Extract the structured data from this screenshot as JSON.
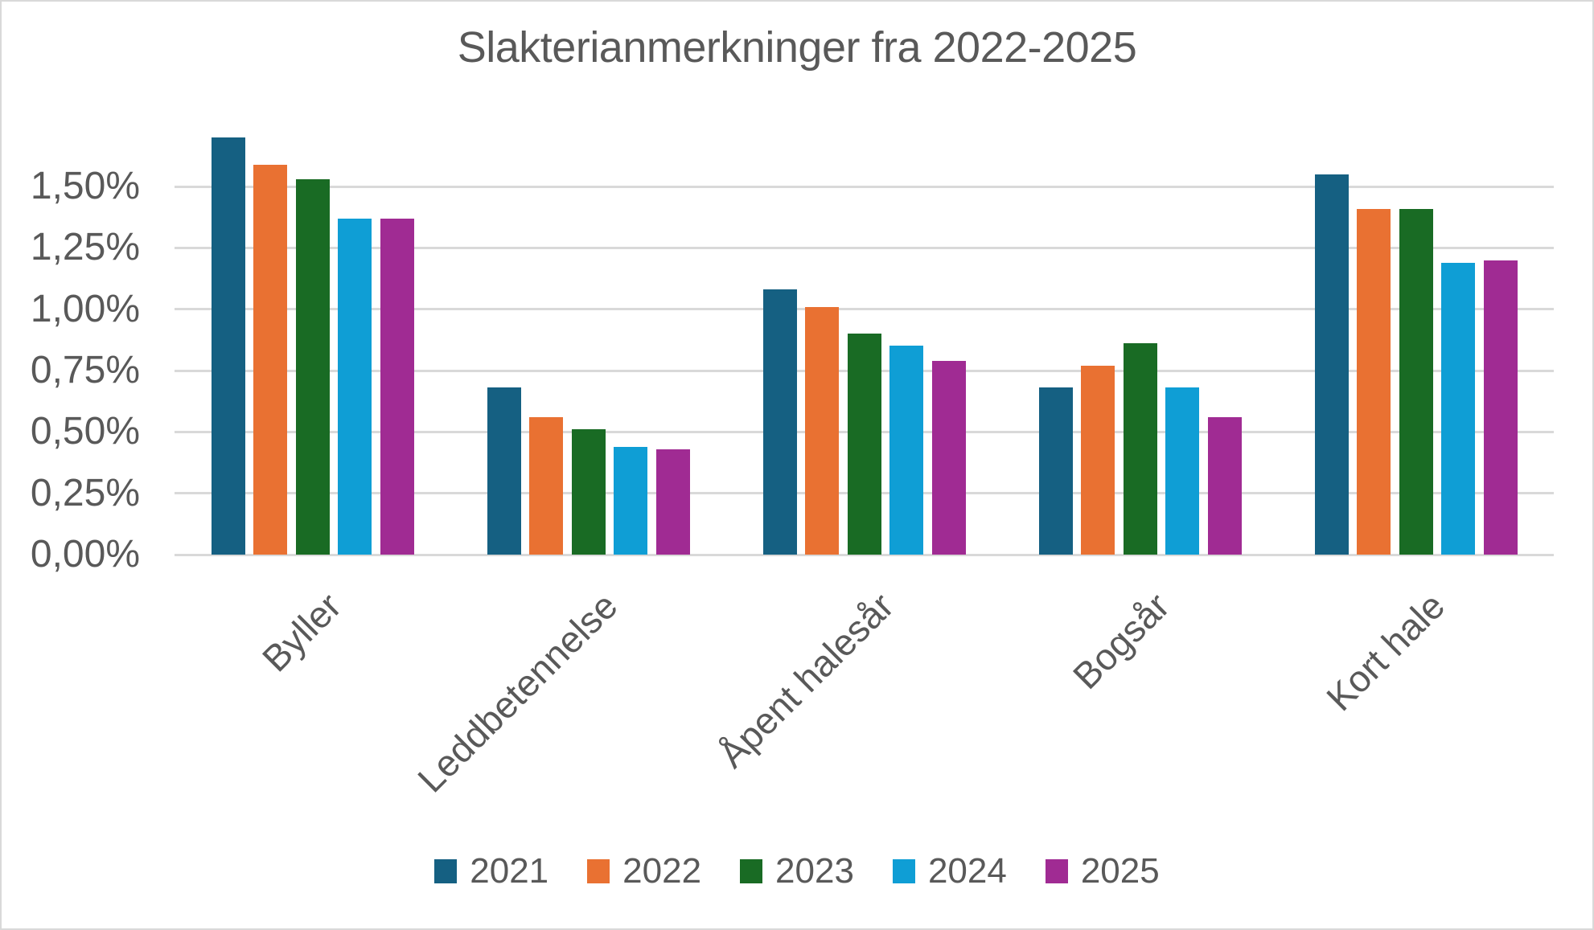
{
  "colors": {
    "background": "#FFFFFF",
    "frame_border": "#D9D9D9",
    "gridline": "#D9D9D9",
    "axis_line": "#D9D9D9",
    "text": "#595959"
  },
  "chart_data": {
    "type": "bar",
    "title": "Slakterianmerkninger fra 2022-2025",
    "categories": [
      "Byller",
      "Leddbetennelse",
      "Åpent halesår",
      "Bogsår",
      "Kort hale"
    ],
    "series": [
      {
        "name": "2021",
        "color": "#156082",
        "values": [
          1.7,
          0.68,
          1.08,
          0.68,
          1.55
        ]
      },
      {
        "name": "2022",
        "color": "#E97132",
        "values": [
          1.59,
          0.56,
          1.01,
          0.77,
          1.41
        ]
      },
      {
        "name": "2023",
        "color": "#196B24",
        "values": [
          1.53,
          0.51,
          0.9,
          0.86,
          1.41
        ]
      },
      {
        "name": "2024",
        "color": "#0F9ED5",
        "values": [
          1.37,
          0.44,
          0.85,
          0.68,
          1.19
        ]
      },
      {
        "name": "2025",
        "color": "#A02B93",
        "values": [
          1.37,
          0.43,
          0.79,
          0.56,
          1.2
        ]
      }
    ],
    "xlabel": "",
    "ylabel": "",
    "ylim": [
      0,
      1.75
    ],
    "yticks": [
      0,
      0.25,
      0.5,
      0.75,
      1.0,
      1.25,
      1.5
    ],
    "ytick_labels": [
      "0,00%",
      "0,25%",
      "0,50%",
      "0,75%",
      "1,00%",
      "1,25%",
      "1,50%"
    ],
    "value_unit": "percent",
    "value_format": "comma decimal separator",
    "grid": "horizontal only",
    "legend_position": "bottom",
    "legend_labels": [
      "2021",
      "2022",
      "2023",
      "2024",
      "2025"
    ]
  }
}
